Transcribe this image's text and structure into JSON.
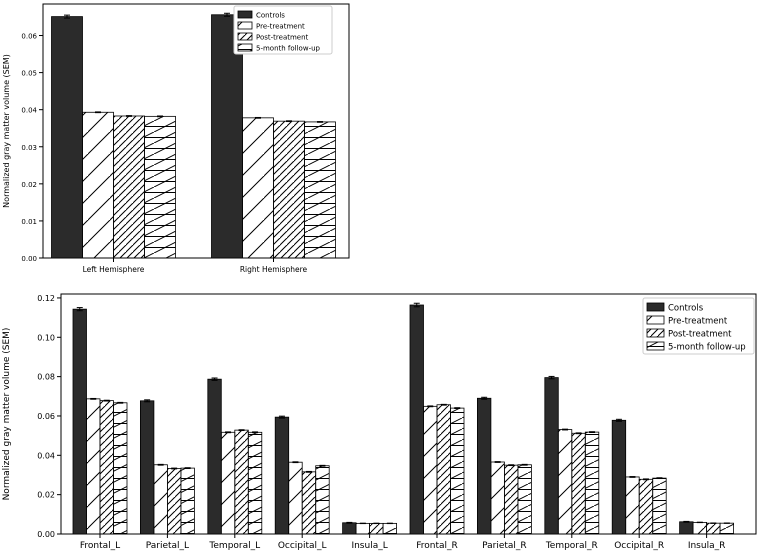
{
  "chart_data": [
    {
      "type": "bar",
      "ylabel": "Normalized gray matter volume (SEM)",
      "xlabel": "",
      "ylim": [
        0,
        0.0685
      ],
      "yticks": [
        0.0,
        0.01,
        0.02,
        0.03,
        0.04,
        0.05,
        0.06
      ],
      "ytick_labels": [
        "0.00",
        "0.01",
        "0.02",
        "0.03",
        "0.04",
        "0.05",
        "0.06"
      ],
      "categories": [
        "Left Hemisphere",
        "Right Hemisphere"
      ],
      "legend_position": "top-right",
      "grid": false,
      "series": [
        {
          "name": "Controls",
          "values": [
            0.0651,
            0.0656
          ],
          "errors": [
            0.0004,
            0.0004
          ]
        },
        {
          "name": "Pre-treatment",
          "values": [
            0.0393,
            0.0378
          ],
          "errors": [
            0.0001,
            0.0001
          ]
        },
        {
          "name": "Post-treatment",
          "values": [
            0.0383,
            0.0369
          ],
          "errors": [
            0.0001,
            0.0001
          ]
        },
        {
          "name": "5-month follow-up",
          "values": [
            0.0382,
            0.0367
          ],
          "errors": [
            0.0001,
            0.0001
          ]
        }
      ]
    },
    {
      "type": "bar",
      "ylabel": "Normalized gray matter volume (SEM)",
      "xlabel": "",
      "ylim": [
        0,
        0.122
      ],
      "yticks": [
        0.0,
        0.02,
        0.04,
        0.06,
        0.08,
        0.1,
        0.12
      ],
      "ytick_labels": [
        "0.00",
        "0.02",
        "0.04",
        "0.06",
        "0.08",
        "0.10",
        "0.12"
      ],
      "categories": [
        "Frontal_L",
        "Parietal_L",
        "Temporal_L",
        "Occipital_L",
        "Insula_L",
        "Frontal_R",
        "Parietal_R",
        "Temporal_R",
        "Occipital_R",
        "Insula_R"
      ],
      "legend_position": "top-right",
      "grid": false,
      "series": [
        {
          "name": "Controls",
          "values": [
            0.1143,
            0.0677,
            0.0787,
            0.0594,
            0.0057,
            0.1164,
            0.069,
            0.0795,
            0.0578,
            0.0062
          ],
          "errors": [
            0.0008,
            0.0005,
            0.0006,
            0.0005,
            0.0002,
            0.0009,
            0.0005,
            0.0006,
            0.0005,
            0.0002
          ]
        },
        {
          "name": "Pre-treatment",
          "values": [
            0.0687,
            0.0352,
            0.0517,
            0.0365,
            0.0054,
            0.0649,
            0.0366,
            0.0531,
            0.029,
            0.0059
          ],
          "errors": [
            0.0002,
            0.0002,
            0.0002,
            0.0002,
            0.0001,
            0.0002,
            0.0002,
            0.0002,
            0.0002,
            0.0001
          ]
        },
        {
          "name": "Post-treatment",
          "values": [
            0.0678,
            0.0333,
            0.0528,
            0.0316,
            0.0054,
            0.0657,
            0.035,
            0.0512,
            0.0278,
            0.0055
          ],
          "errors": [
            0.0002,
            0.0002,
            0.0002,
            0.0002,
            0.0001,
            0.0002,
            0.0002,
            0.0002,
            0.0002,
            0.0001
          ]
        },
        {
          "name": "5-month follow-up",
          "values": [
            0.0667,
            0.0335,
            0.0517,
            0.0347,
            0.0054,
            0.064,
            0.0352,
            0.0518,
            0.0284,
            0.0055
          ],
          "errors": [
            0.0002,
            0.0002,
            0.0002,
            0.0002,
            0.0001,
            0.0002,
            0.0002,
            0.0002,
            0.0002,
            0.0001
          ]
        }
      ]
    }
  ],
  "colors": {
    "controls": "#2b2b2b",
    "hatched": "#ffffff",
    "edge": "#000000"
  },
  "hatch_patterns": [
    "solid",
    "diagonal",
    "dense-diagonal",
    "diagonal-horizontal"
  ]
}
